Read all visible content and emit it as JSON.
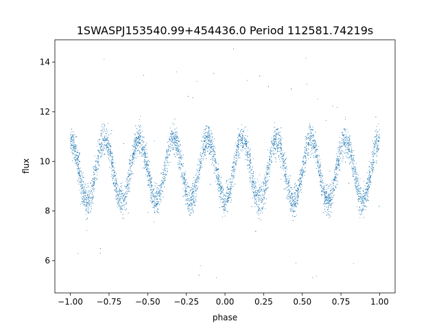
{
  "chart_data": {
    "type": "scatter",
    "title": "1SWASPJ153540.99+454436.0 Period 112581.74219s",
    "xlabel": "phase",
    "ylabel": "flux",
    "xlim": [
      -1.1,
      1.1
    ],
    "ylim": [
      4.7,
      14.9
    ],
    "x_ticks": [
      -1.0,
      -0.75,
      -0.5,
      -0.25,
      0.0,
      0.25,
      0.5,
      0.75,
      1.0
    ],
    "x_tick_labels": [
      "−1.00",
      "−0.75",
      "−0.50",
      "−0.25",
      "0.00",
      "0.25",
      "0.50",
      "0.75",
      "1.00"
    ],
    "y_ticks": [
      6,
      8,
      10,
      12,
      14
    ],
    "y_tick_labels": [
      "6",
      "8",
      "10",
      "12",
      "14"
    ],
    "grid": false,
    "series": [
      {
        "color": "#1f77b4",
        "marker_size": 0.5,
        "phase_range": [
          -1.0,
          1.0
        ],
        "light_curve_cycles": 9,
        "flux_max": 10.9,
        "flux_min": 8.4,
        "scatter_sd": 0.3,
        "outliers_flux_range": [
          5.2,
          14.8
        ],
        "point_count": 9000
      }
    ]
  }
}
